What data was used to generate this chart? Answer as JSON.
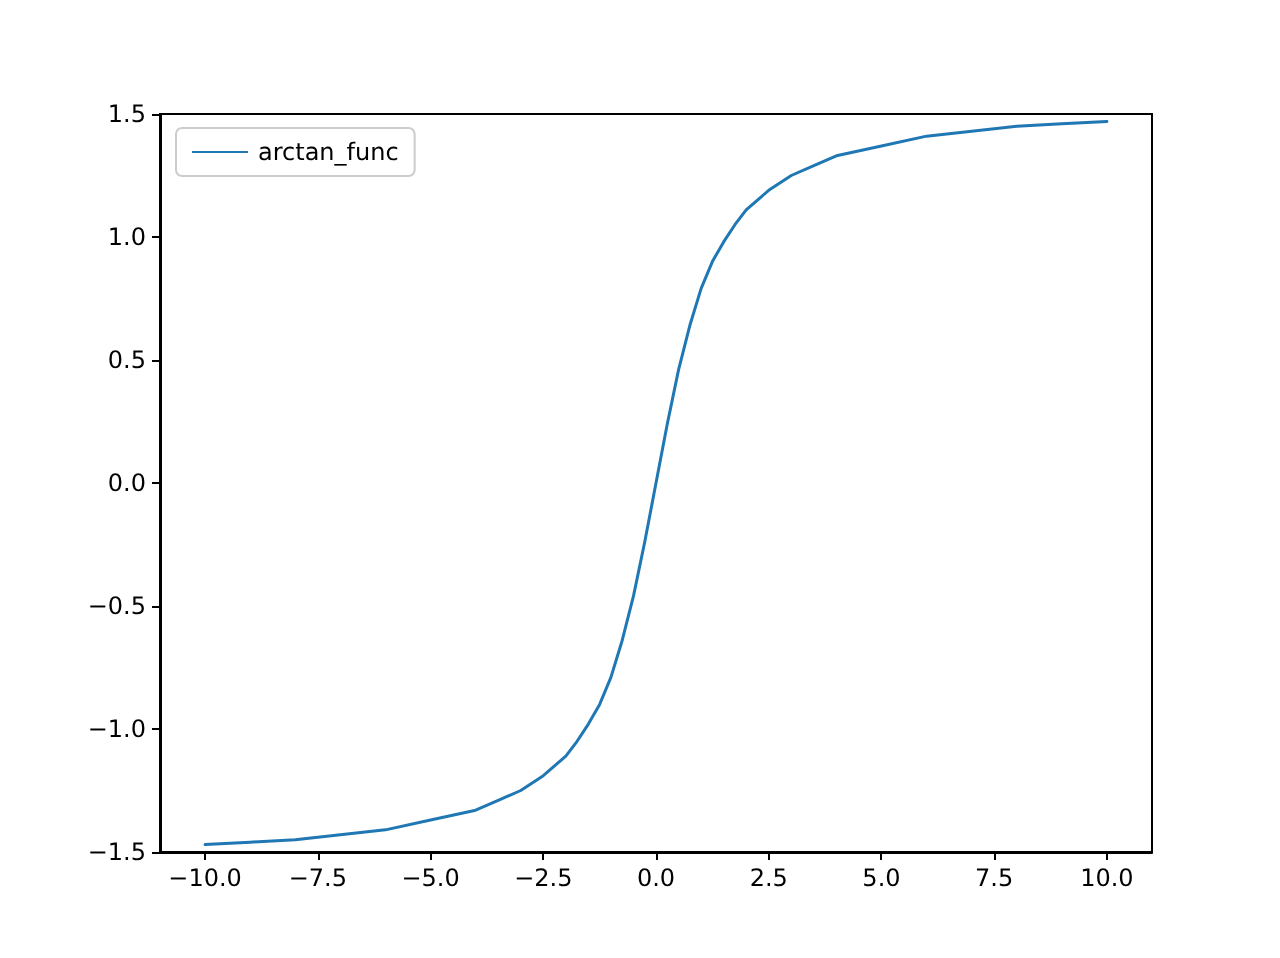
{
  "chart_data": {
    "type": "line",
    "x": [
      -10,
      -9,
      -8,
      -7,
      -6,
      -5,
      -4,
      -3.5,
      -3,
      -2.5,
      -2,
      -1.75,
      -1.5,
      -1.25,
      -1,
      -0.75,
      -0.5,
      -0.25,
      0,
      0.25,
      0.5,
      0.75,
      1,
      1.25,
      1.5,
      1.75,
      2,
      2.5,
      3,
      3.5,
      4,
      5,
      6,
      7,
      8,
      9,
      10
    ],
    "series": [
      {
        "name": "arctan_func",
        "color": "#1f77b4",
        "values": [
          -1.47,
          -1.46,
          -1.45,
          -1.43,
          -1.41,
          -1.37,
          -1.33,
          -1.29,
          -1.25,
          -1.19,
          -1.11,
          -1.05,
          -0.98,
          -0.9,
          -0.79,
          -0.64,
          -0.46,
          -0.24,
          0,
          0.24,
          0.46,
          0.64,
          0.79,
          0.9,
          0.98,
          1.05,
          1.11,
          1.19,
          1.25,
          1.29,
          1.33,
          1.37,
          1.41,
          1.43,
          1.45,
          1.46,
          1.47
        ]
      }
    ],
    "xlim": [
      -11,
      11
    ],
    "xticks": [
      {
        "value": -10,
        "label": "−10.0"
      },
      {
        "value": -7.5,
        "label": "−7.5"
      },
      {
        "value": -5,
        "label": "−5.0"
      },
      {
        "value": -2.5,
        "label": "−2.5"
      },
      {
        "value": 0,
        "label": "0.0"
      },
      {
        "value": 2.5,
        "label": "2.5"
      },
      {
        "value": 5,
        "label": "5.0"
      },
      {
        "value": 7.5,
        "label": "7.5"
      },
      {
        "value": 10,
        "label": "10.0"
      }
    ],
    "ylim": [
      -1.5,
      1.5
    ],
    "yticks": [
      {
        "value": -1.5,
        "label": "−1.5"
      },
      {
        "value": -1,
        "label": "−1.0"
      },
      {
        "value": -0.5,
        "label": "−0.5"
      },
      {
        "value": 0,
        "label": "0.0"
      },
      {
        "value": 0.5,
        "label": "0.5"
      },
      {
        "value": 1,
        "label": "1.0"
      },
      {
        "value": 1.5,
        "label": "1.5"
      }
    ],
    "grid": false,
    "legend": "top left",
    "marker": "none",
    "line_style": "solid"
  }
}
